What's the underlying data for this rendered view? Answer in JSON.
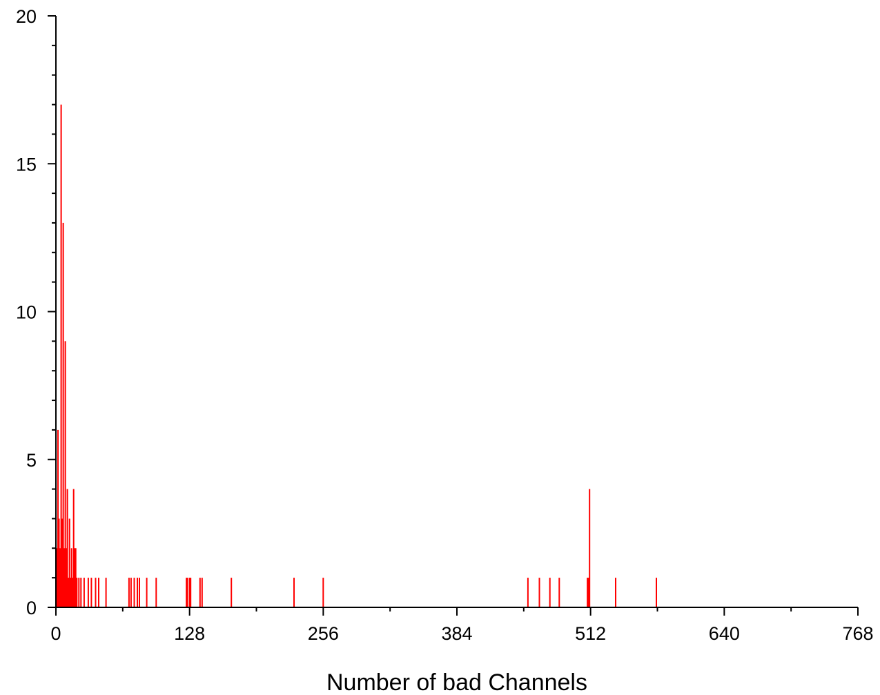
{
  "chart_data": {
    "type": "bar",
    "title": "",
    "xlabel": "Number of bad Channels",
    "ylabel": "",
    "xlim": [
      0,
      768
    ],
    "ylim": [
      0,
      20
    ],
    "x_ticks": [
      0,
      128,
      256,
      384,
      512,
      640,
      768
    ],
    "y_ticks": [
      0,
      5,
      10,
      15,
      20
    ],
    "grid": false,
    "legend": "none",
    "bar_color": "#ff0000",
    "x": [
      1,
      2,
      3,
      4,
      5,
      6,
      7,
      8,
      9,
      10,
      11,
      12,
      13,
      14,
      15,
      16,
      17,
      18,
      19,
      20,
      22,
      24,
      27,
      31,
      34,
      38,
      41,
      48,
      70,
      72,
      75,
      78,
      80,
      87,
      96,
      125,
      126,
      128,
      129,
      138,
      140,
      168,
      228,
      256,
      452,
      463,
      473,
      482,
      509,
      510,
      511,
      536,
      575
    ],
    "values": [
      2,
      6,
      3,
      2,
      17,
      3,
      13,
      2,
      9,
      2,
      4,
      1,
      3,
      1,
      2,
      1,
      4,
      2,
      2,
      1,
      1,
      1,
      1,
      1,
      1,
      1,
      1,
      1,
      1,
      1,
      1,
      1,
      1,
      1,
      1,
      1,
      1,
      1,
      1,
      1,
      1,
      1,
      1,
      1,
      1,
      1,
      1,
      1,
      1,
      1,
      4,
      1,
      1
    ]
  }
}
